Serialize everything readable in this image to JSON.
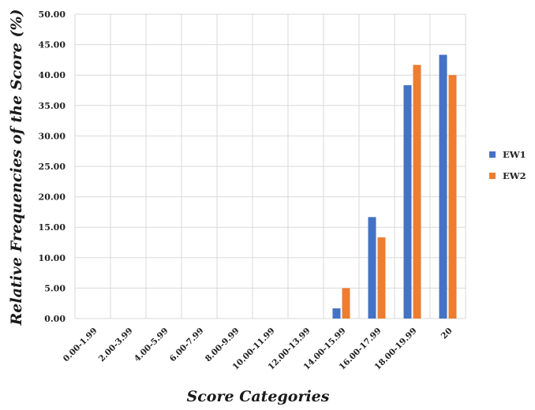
{
  "chart_data": {
    "type": "bar",
    "categories": [
      "0.00-1.99",
      "2.00-3.99",
      "4.00-5.99",
      "6.00-7.99",
      "8.00-9.99",
      "10.00-11.99",
      "12.00-13.99",
      "14.00-15.99",
      "16.00-17.99",
      "18.00-19.99",
      "20"
    ],
    "series": [
      {
        "name": "EW1",
        "color": "#4472C4",
        "values": [
          0,
          0,
          0,
          0,
          0,
          0,
          0,
          1.67,
          16.67,
          38.33,
          43.33
        ]
      },
      {
        "name": "EW2",
        "color": "#ED7D31",
        "values": [
          0,
          0,
          0,
          0,
          0,
          0,
          0,
          5.0,
          13.33,
          41.67,
          40.0
        ]
      }
    ],
    "xlabel": "Score Categories",
    "ylabel": "Relative Frequencies of the Score (%)",
    "ylim": [
      0,
      50
    ],
    "yticks": [
      "0.00",
      "5.00",
      "10.00",
      "15.00",
      "20.00",
      "25.00",
      "30.00",
      "35.00",
      "40.00",
      "45.00",
      "50.00"
    ],
    "grid": true,
    "legend_position": "right"
  }
}
